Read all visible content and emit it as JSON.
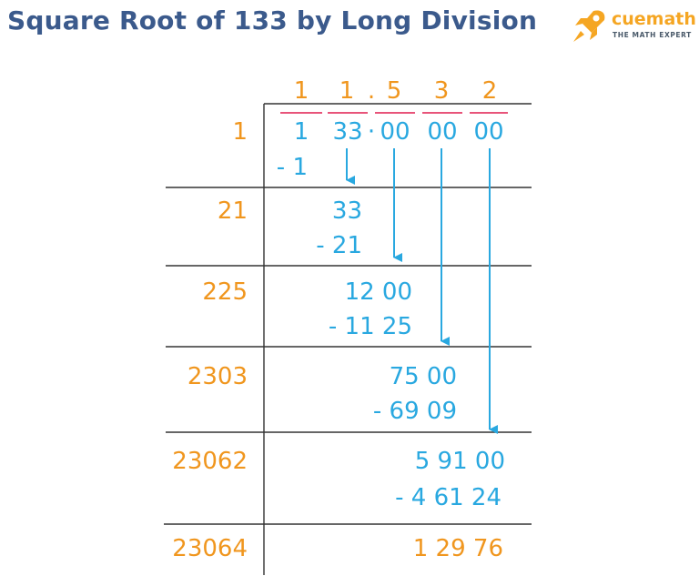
{
  "title": "Square Root of 133 by Long Division",
  "brand": {
    "name": "cuemath",
    "tagline": "THE MATH EXPERT"
  },
  "colors": {
    "title": "#3b5a8c",
    "quotient": "#f0961e",
    "divisor": "#f0961e",
    "dividend": "#29a8e0",
    "arrow": "#29a8e0",
    "pair_bar": "#e8547a",
    "rule": "#333333"
  },
  "quotient_digits": [
    "1",
    "1",
    ".",
    "5",
    "3",
    "2"
  ],
  "dividend": [
    "1",
    "33",
    "·",
    "00",
    "00",
    "00"
  ],
  "rows": [
    {
      "divisor": "1",
      "subtract": "- 1"
    },
    {
      "divisor": "21",
      "remainder": "33",
      "subtract": "- 21"
    },
    {
      "divisor": "225",
      "remainder": "12 00",
      "subtract": "- 11 25"
    },
    {
      "divisor": "2303",
      "remainder": "75 00",
      "subtract": "- 69 09"
    },
    {
      "divisor": "23062",
      "remainder": "5 91 00",
      "subtract": "- 4 61 24"
    },
    {
      "divisor": "23064",
      "remainder": "1 29 76"
    }
  ]
}
